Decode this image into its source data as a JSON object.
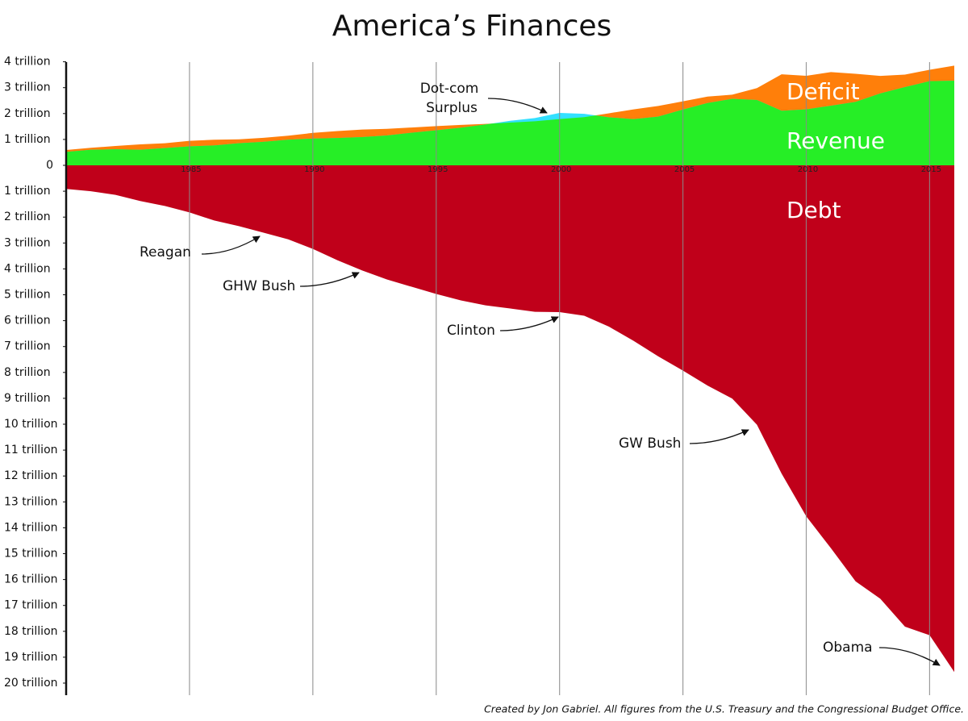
{
  "chart_data": {
    "type": "area",
    "title": "America’s Finances",
    "x": [
      1980,
      1981,
      1982,
      1983,
      1984,
      1985,
      1986,
      1987,
      1988,
      1989,
      1990,
      1991,
      1992,
      1993,
      1994,
      1995,
      1996,
      1997,
      1998,
      1999,
      2000,
      2001,
      2002,
      2003,
      2004,
      2005,
      2006,
      2007,
      2008,
      2009,
      2010,
      2011,
      2012,
      2013,
      2014,
      2015,
      2016
    ],
    "series": [
      {
        "name": "Revenue",
        "color": "#26ee26",
        "values": [
          0.517,
          0.599,
          0.618,
          0.601,
          0.666,
          0.734,
          0.769,
          0.854,
          0.909,
          0.991,
          1.032,
          1.055,
          1.091,
          1.154,
          1.259,
          1.352,
          1.453,
          1.579,
          1.722,
          1.827,
          2.025,
          1.991,
          1.853,
          1.782,
          1.88,
          2.153,
          2.406,
          2.568,
          2.524,
          2.105,
          2.163,
          2.303,
          2.45,
          2.775,
          3.021,
          3.25,
          3.268
        ]
      },
      {
        "name": "Deficit",
        "color": "#ff7f0a",
        "surplus_color": "#33e0ff",
        "values": [
          0.074,
          0.079,
          0.128,
          0.208,
          0.185,
          0.212,
          0.221,
          0.15,
          0.155,
          0.153,
          0.221,
          0.269,
          0.29,
          0.255,
          0.203,
          0.164,
          0.107,
          0.022,
          -0.069,
          -0.126,
          -0.236,
          -0.128,
          0.158,
          0.378,
          0.413,
          0.318,
          0.248,
          0.161,
          0.459,
          1.413,
          1.294,
          1.3,
          1.087,
          0.68,
          0.485,
          0.442,
          0.585
        ]
      },
      {
        "name": "Debt",
        "color": "#c0001a",
        "values": [
          -0.91,
          -1.0,
          -1.14,
          -1.38,
          -1.57,
          -1.82,
          -2.13,
          -2.35,
          -2.6,
          -2.86,
          -3.23,
          -3.67,
          -4.06,
          -4.41,
          -4.69,
          -4.97,
          -5.22,
          -5.41,
          -5.53,
          -5.66,
          -5.67,
          -5.81,
          -6.23,
          -6.78,
          -7.38,
          -7.93,
          -8.51,
          -9.01,
          -10.02,
          -11.91,
          -13.56,
          -14.79,
          -16.07,
          -16.74,
          -17.82,
          -18.15,
          -19.57
        ]
      }
    ],
    "xlim": [
      1980,
      2016
    ],
    "xticks": [
      1985,
      1990,
      1995,
      2000,
      2005,
      2010,
      2015
    ],
    "ylim": [
      -20.5,
      4
    ],
    "yticks": [
      {
        "value": 4,
        "label": "4 trillion"
      },
      {
        "value": 3,
        "label": "3 trillion"
      },
      {
        "value": 2,
        "label": "2 trillion"
      },
      {
        "value": 1,
        "label": "1 trillion"
      },
      0,
      {
        "value": -1,
        "label": "1 trillion"
      },
      {
        "value": -2,
        "label": "2 trillion"
      },
      {
        "value": -3,
        "label": "3 trillion"
      },
      {
        "value": -4,
        "label": "4 trillion"
      },
      {
        "value": -5,
        "label": "5 trillion"
      },
      {
        "value": -6,
        "label": "6 trillion"
      },
      {
        "value": -7,
        "label": "7 trillion"
      },
      {
        "value": -8,
        "label": "8 trillion"
      },
      {
        "value": -9,
        "label": "9 trillion"
      },
      {
        "value": -10,
        "label": "10 trillion"
      },
      {
        "value": -11,
        "label": "11 trillion"
      },
      {
        "value": -12,
        "label": "12 trillion"
      },
      {
        "value": -13,
        "label": "13 trillion"
      },
      {
        "value": -14,
        "label": "14 trillion"
      },
      {
        "value": -15,
        "label": "15 trillion"
      },
      {
        "value": -16,
        "label": "16 trillion"
      },
      {
        "value": -17,
        "label": "17 trillion"
      },
      {
        "value": -18,
        "label": "18 trillion"
      },
      {
        "value": -19,
        "label": "19 trillion"
      },
      {
        "value": -20,
        "label": "20 trillion"
      }
    ],
    "grid": true,
    "surplus_label": [
      "Dot-com",
      "Surplus"
    ],
    "annotations": [
      "Reagan",
      "GHW Bush",
      "Clinton",
      "GW Bush",
      "Obama"
    ],
    "source": "Created by Jon Gabriel. All figures from the U.S. Treasury and the Congressional Budget Office."
  }
}
